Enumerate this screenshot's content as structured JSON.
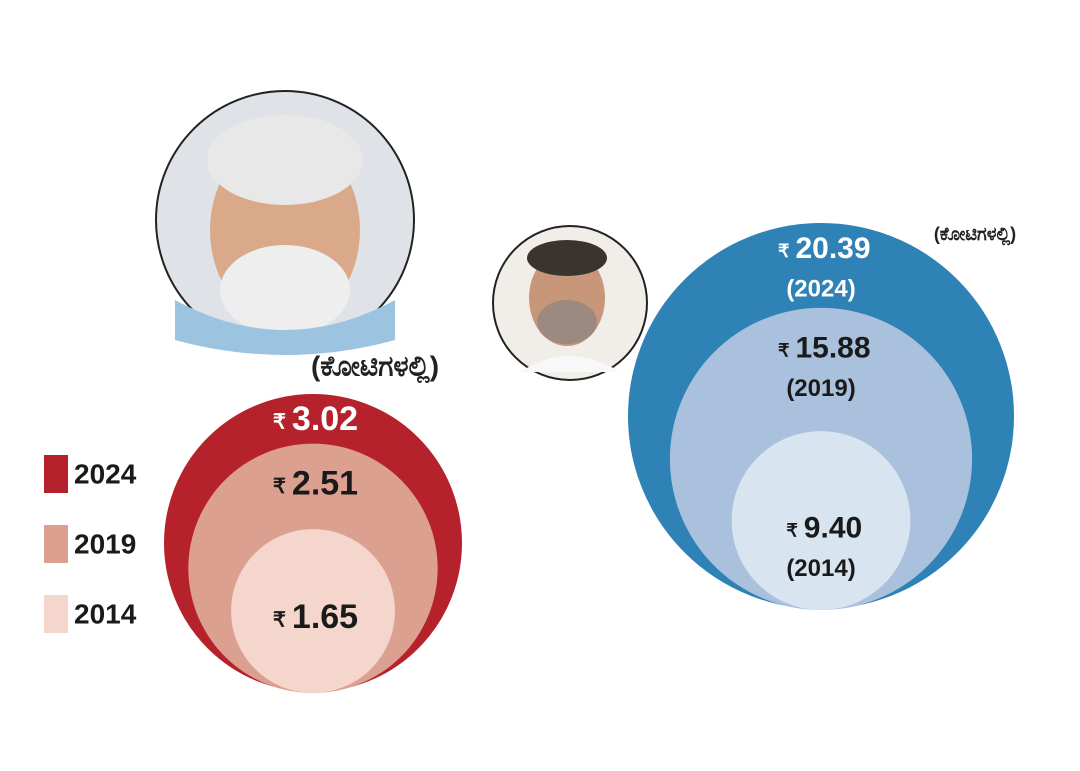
{
  "chart_data": [
    {
      "type": "nested-circle",
      "unit": "(ಕೋಟಿಗಳಲ್ಲಿ)",
      "currency": "₹",
      "categories": [
        "2024",
        "2019",
        "2014"
      ],
      "values": [
        3.02,
        2.51,
        1.65
      ],
      "colors": [
        "#b5222c",
        "#dca091",
        "#f5d6cc"
      ],
      "legend": "left"
    },
    {
      "type": "nested-circle",
      "unit": "(ಕೋಟಿಗಳಲ್ಲಿ)",
      "currency": "₹",
      "categories": [
        "(2024)",
        "(2019)",
        "(2014)"
      ],
      "values": [
        20.39,
        15.88,
        9.4
      ],
      "value_labels": [
        "20.39",
        "15.88",
        "9.40"
      ],
      "colors": [
        "#2e82b5",
        "#a9c1dc",
        "#d8e4f0"
      ],
      "legend": "none"
    }
  ]
}
